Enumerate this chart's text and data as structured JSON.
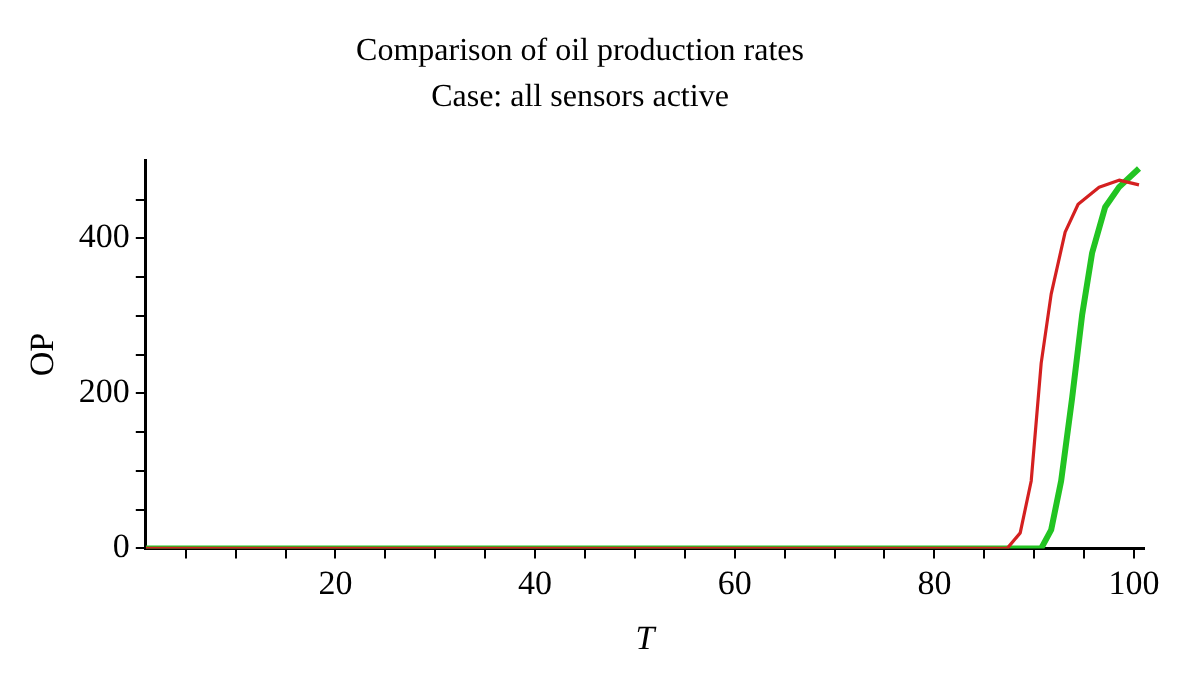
{
  "chart_data": {
    "type": "line",
    "title": "Comparison of oil production rates",
    "subtitle": "Case: all sensors active",
    "xlabel": "T",
    "ylabel": "OP",
    "xlim": [
      1,
      101
    ],
    "ylim": [
      0,
      500
    ],
    "xticks": [
      {
        "value": 5,
        "label": null
      },
      {
        "value": 10,
        "label": null
      },
      {
        "value": 15,
        "label": null
      },
      20,
      {
        "value": 25,
        "label": null
      },
      {
        "value": 30,
        "label": null
      },
      {
        "value": 35,
        "label": null
      },
      40,
      {
        "value": 45,
        "label": null
      },
      {
        "value": 50,
        "label": null
      },
      {
        "value": 55,
        "label": null
      },
      60,
      {
        "value": 65,
        "label": null
      },
      {
        "value": 70,
        "label": null
      },
      {
        "value": 75,
        "label": null
      },
      80,
      {
        "value": 85,
        "label": null
      },
      {
        "value": 90,
        "label": null
      },
      {
        "value": 95,
        "label": null
      },
      100
    ],
    "yticks": [
      0,
      {
        "value": 50,
        "label": null
      },
      {
        "value": 100,
        "label": null
      },
      {
        "value": 150,
        "label": null
      },
      200,
      {
        "value": 250,
        "label": null
      },
      {
        "value": 300,
        "label": null
      },
      {
        "value": 350,
        "label": null
      },
      400,
      {
        "value": 450,
        "label": null
      }
    ],
    "grid": false,
    "legend": false,
    "marker": "none",
    "line_style": "solid",
    "series": [
      {
        "color": "#d42020",
        "x": [
          1,
          87.3,
          88.6,
          89.7,
          90.7,
          91.7,
          93.1,
          94.4,
          96.5,
          98.5,
          100.5
        ],
        "values": [
          0,
          0,
          20,
          87,
          239,
          328,
          408,
          444,
          466,
          475,
          469
        ]
      },
      {
        "color": "#22c422",
        "x": [
          1,
          90.7,
          91.7,
          92.7,
          93.8,
          94.8,
          95.8,
          97.1,
          98.5,
          100.5
        ],
        "values": [
          0,
          0,
          24,
          87,
          194,
          301,
          381,
          440,
          466,
          490
        ]
      }
    ]
  }
}
